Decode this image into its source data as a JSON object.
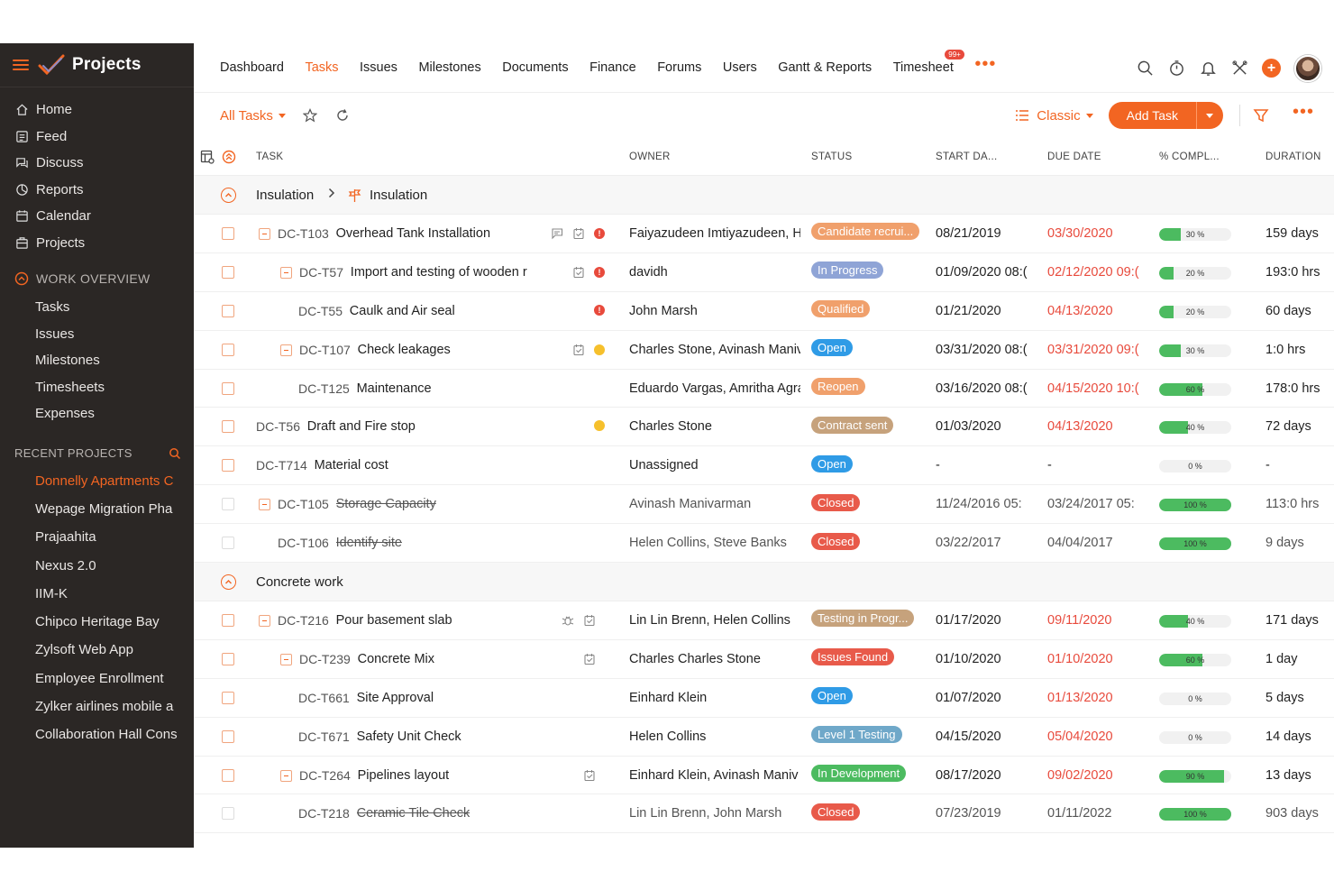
{
  "app": {
    "title": "Projects"
  },
  "sidebar": {
    "main": [
      {
        "label": "Home",
        "icon": "home-icon"
      },
      {
        "label": "Feed",
        "icon": "feed-icon"
      },
      {
        "label": "Discuss",
        "icon": "discuss-icon"
      },
      {
        "label": "Reports",
        "icon": "reports-icon"
      },
      {
        "label": "Calendar",
        "icon": "calendar-icon"
      },
      {
        "label": "Projects",
        "icon": "projects-icon"
      }
    ],
    "work_overview": {
      "label": "WORK OVERVIEW",
      "items": [
        "Tasks",
        "Issues",
        "Milestones",
        "Timesheets",
        "Expenses"
      ]
    },
    "recent": {
      "label": "RECENT PROJECTS",
      "items": [
        "Donnelly Apartments C",
        "Wepage Migration Pha",
        "Prajaahita",
        "Nexus 2.0",
        "IIM-K",
        "Chipco Heritage Bay",
        "Zylsoft Web App",
        "Employee Enrollment",
        "Zylker airlines mobile a",
        "Collaboration Hall Cons"
      ]
    }
  },
  "topnav": {
    "tabs": [
      "Dashboard",
      "Tasks",
      "Issues",
      "Milestones",
      "Documents",
      "Finance",
      "Forums",
      "Users",
      "Gantt & Reports",
      "Timesheet"
    ],
    "active": "Tasks",
    "timesheet_badge": "99+",
    "more": "•••"
  },
  "toolbar": {
    "filter_label": "All Tasks",
    "view_label": "Classic",
    "add_label": "Add Task",
    "more": "•••"
  },
  "columns": {
    "task": "TASK",
    "owner": "OWNER",
    "status": "STATUS",
    "start": "START DA...",
    "due": "DUE DATE",
    "pct": "% COMPL...",
    "duration": "DURATION"
  },
  "colors": {
    "accent": "#f26522",
    "sidebar_bg": "#2b2725",
    "progress": "#4cbb60",
    "overdue": "#e84a3c"
  },
  "groups": [
    {
      "name": "Insulation",
      "sub": "Insulation",
      "rows": [
        {
          "id": "DC-T103",
          "name": "Overhead Tank Installation",
          "indent": 0,
          "expand": true,
          "icons": [
            "comment-icon",
            "log-icon"
          ],
          "dot": "red",
          "owner": "Faiyazudeen Imtiyazudeen, H",
          "status": "Candidate recrui...",
          "status_color": "#f0a06c",
          "start": "08/21/2019",
          "due": "03/30/2020",
          "overdue": true,
          "pct": 30,
          "pct_label": "30 %",
          "duration": "159 days",
          "closed": false
        },
        {
          "id": "DC-T57",
          "name": "Import and testing of wooden r",
          "indent": 1,
          "expand": true,
          "icons": [
            "log-icon"
          ],
          "dot": "red",
          "owner": "davidh",
          "status": "In Progress",
          "status_color": "#8fa4d6",
          "start": "01/09/2020 08:(",
          "due": "02/12/2020 09:(",
          "overdue": true,
          "pct": 20,
          "pct_label": "20 %",
          "duration": "193:0 hrs",
          "closed": false
        },
        {
          "id": "DC-T55",
          "name": "Caulk and Air seal",
          "indent": 2,
          "expand": false,
          "icons": [],
          "dot": "red",
          "owner": "John Marsh",
          "status": "Qualified",
          "status_color": "#f0a06c",
          "start": "01/21/2020",
          "due": "04/13/2020",
          "overdue": true,
          "pct": 20,
          "pct_label": "20 %",
          "duration": "60 days",
          "closed": false
        },
        {
          "id": "DC-T107",
          "name": "Check leakages",
          "indent": 1,
          "expand": true,
          "icons": [
            "log-icon"
          ],
          "dot": "yellow",
          "owner": "Charles Stone, Avinash Maniv",
          "status": "Open",
          "status_color": "#2f9be6",
          "start": "03/31/2020 08:(",
          "due": "03/31/2020 09:(",
          "overdue": true,
          "pct": 30,
          "pct_label": "30 %",
          "duration": "1:0 hrs",
          "closed": false
        },
        {
          "id": "DC-T125",
          "name": "Maintenance",
          "indent": 2,
          "expand": false,
          "icons": [],
          "dot": "",
          "owner": "Eduardo Vargas, Amritha Agra",
          "status": "Reopen",
          "status_color": "#f0a06c",
          "start": "03/16/2020 08:(",
          "due": "04/15/2020 10:(",
          "overdue": true,
          "pct": 60,
          "pct_label": "60 %",
          "duration": "178:0 hrs",
          "closed": false
        },
        {
          "id": "DC-T56",
          "name": "Draft and Fire stop",
          "indent": 0,
          "expand": false,
          "icons": [],
          "dot": "yellow",
          "owner": "Charles Stone",
          "status": "Contract sent",
          "status_color": "#c6a27c",
          "start": "01/03/2020",
          "due": "04/13/2020",
          "overdue": true,
          "pct": 40,
          "pct_label": "40 %",
          "duration": "72 days",
          "closed": false
        },
        {
          "id": "DC-T714",
          "name": "Material cost",
          "indent": 0,
          "expand": false,
          "icons": [],
          "dot": "",
          "owner": "Unassigned",
          "status": "Open",
          "status_color": "#2f9be6",
          "start": "-",
          "due": "-",
          "overdue": false,
          "pct": 0,
          "pct_label": "0 %",
          "duration": "-",
          "closed": false
        },
        {
          "id": "DC-T105",
          "name": "Storage Capacity",
          "indent": 0,
          "expand": true,
          "icons": [],
          "dot": "",
          "owner": "Avinash Manivarman",
          "status": "Closed",
          "status_color": "#e85a4a",
          "start": "11/24/2016 05:",
          "due": "03/24/2017 05:",
          "overdue": false,
          "pct": 100,
          "pct_label": "100 %",
          "duration": "113:0 hrs",
          "closed": true
        },
        {
          "id": "DC-T106",
          "name": "Identify site",
          "indent": 1,
          "expand": false,
          "icons": [],
          "dot": "",
          "owner": "Helen Collins, Steve Banks",
          "status": "Closed",
          "status_color": "#e85a4a",
          "start": "03/22/2017",
          "due": "04/04/2017",
          "overdue": false,
          "pct": 100,
          "pct_label": "100 %",
          "duration": "9 days",
          "closed": true
        }
      ]
    },
    {
      "name": "Concrete work",
      "sub": "",
      "rows": [
        {
          "id": "DC-T216",
          "name": "Pour basement slab",
          "indent": 0,
          "expand": true,
          "icons": [
            "bug-icon",
            "log-icon"
          ],
          "dot": "",
          "owner": "Lin Lin Brenn, Helen Collins",
          "status": "Testing in Progr...",
          "status_color": "#c6a27c",
          "start": "01/17/2020",
          "due": "09/11/2020",
          "overdue": true,
          "pct": 40,
          "pct_label": "40 %",
          "duration": "171 days",
          "closed": false
        },
        {
          "id": "DC-T239",
          "name": "Concrete Mix",
          "indent": 1,
          "expand": true,
          "icons": [
            "log-icon"
          ],
          "dot": "",
          "owner": "Charles Charles Stone",
          "status": "Issues Found",
          "status_color": "#e85a4a",
          "start": "01/10/2020",
          "due": "01/10/2020",
          "overdue": true,
          "pct": 60,
          "pct_label": "60 %",
          "duration": "1 day",
          "closed": false
        },
        {
          "id": "DC-T661",
          "name": "Site Approval",
          "indent": 2,
          "expand": false,
          "icons": [],
          "dot": "",
          "owner": "Einhard Klein",
          "status": "Open",
          "status_color": "#2f9be6",
          "start": "01/07/2020",
          "due": "01/13/2020",
          "overdue": true,
          "pct": 0,
          "pct_label": "0 %",
          "duration": "5 days",
          "closed": false
        },
        {
          "id": "DC-T671",
          "name": "Safety Unit Check",
          "indent": 2,
          "expand": false,
          "icons": [],
          "dot": "",
          "owner": "Helen Collins",
          "status": "Level 1 Testing",
          "status_color": "#6fa8c9",
          "start": "04/15/2020",
          "due": "05/04/2020",
          "overdue": true,
          "pct": 0,
          "pct_label": "0 %",
          "duration": "14 days",
          "closed": false
        },
        {
          "id": "DC-T264",
          "name": "Pipelines layout",
          "indent": 1,
          "expand": true,
          "icons": [
            "log-icon"
          ],
          "dot": "",
          "owner": "Einhard Klein, Avinash Maniv",
          "status": "In Development",
          "status_color": "#4cbb60",
          "start": "08/17/2020",
          "due": "09/02/2020",
          "overdue": true,
          "pct": 90,
          "pct_label": "90 %",
          "duration": "13 days",
          "closed": false
        },
        {
          "id": "DC-T218",
          "name": "Ceramic Tile Check",
          "indent": 2,
          "expand": false,
          "icons": [],
          "dot": "",
          "owner": "Lin Lin Brenn, John Marsh",
          "status": "Closed",
          "status_color": "#e85a4a",
          "start": "07/23/2019",
          "due": "01/11/2022",
          "overdue": false,
          "pct": 100,
          "pct_label": "100 %",
          "duration": "903 days",
          "closed": true
        }
      ]
    }
  ]
}
